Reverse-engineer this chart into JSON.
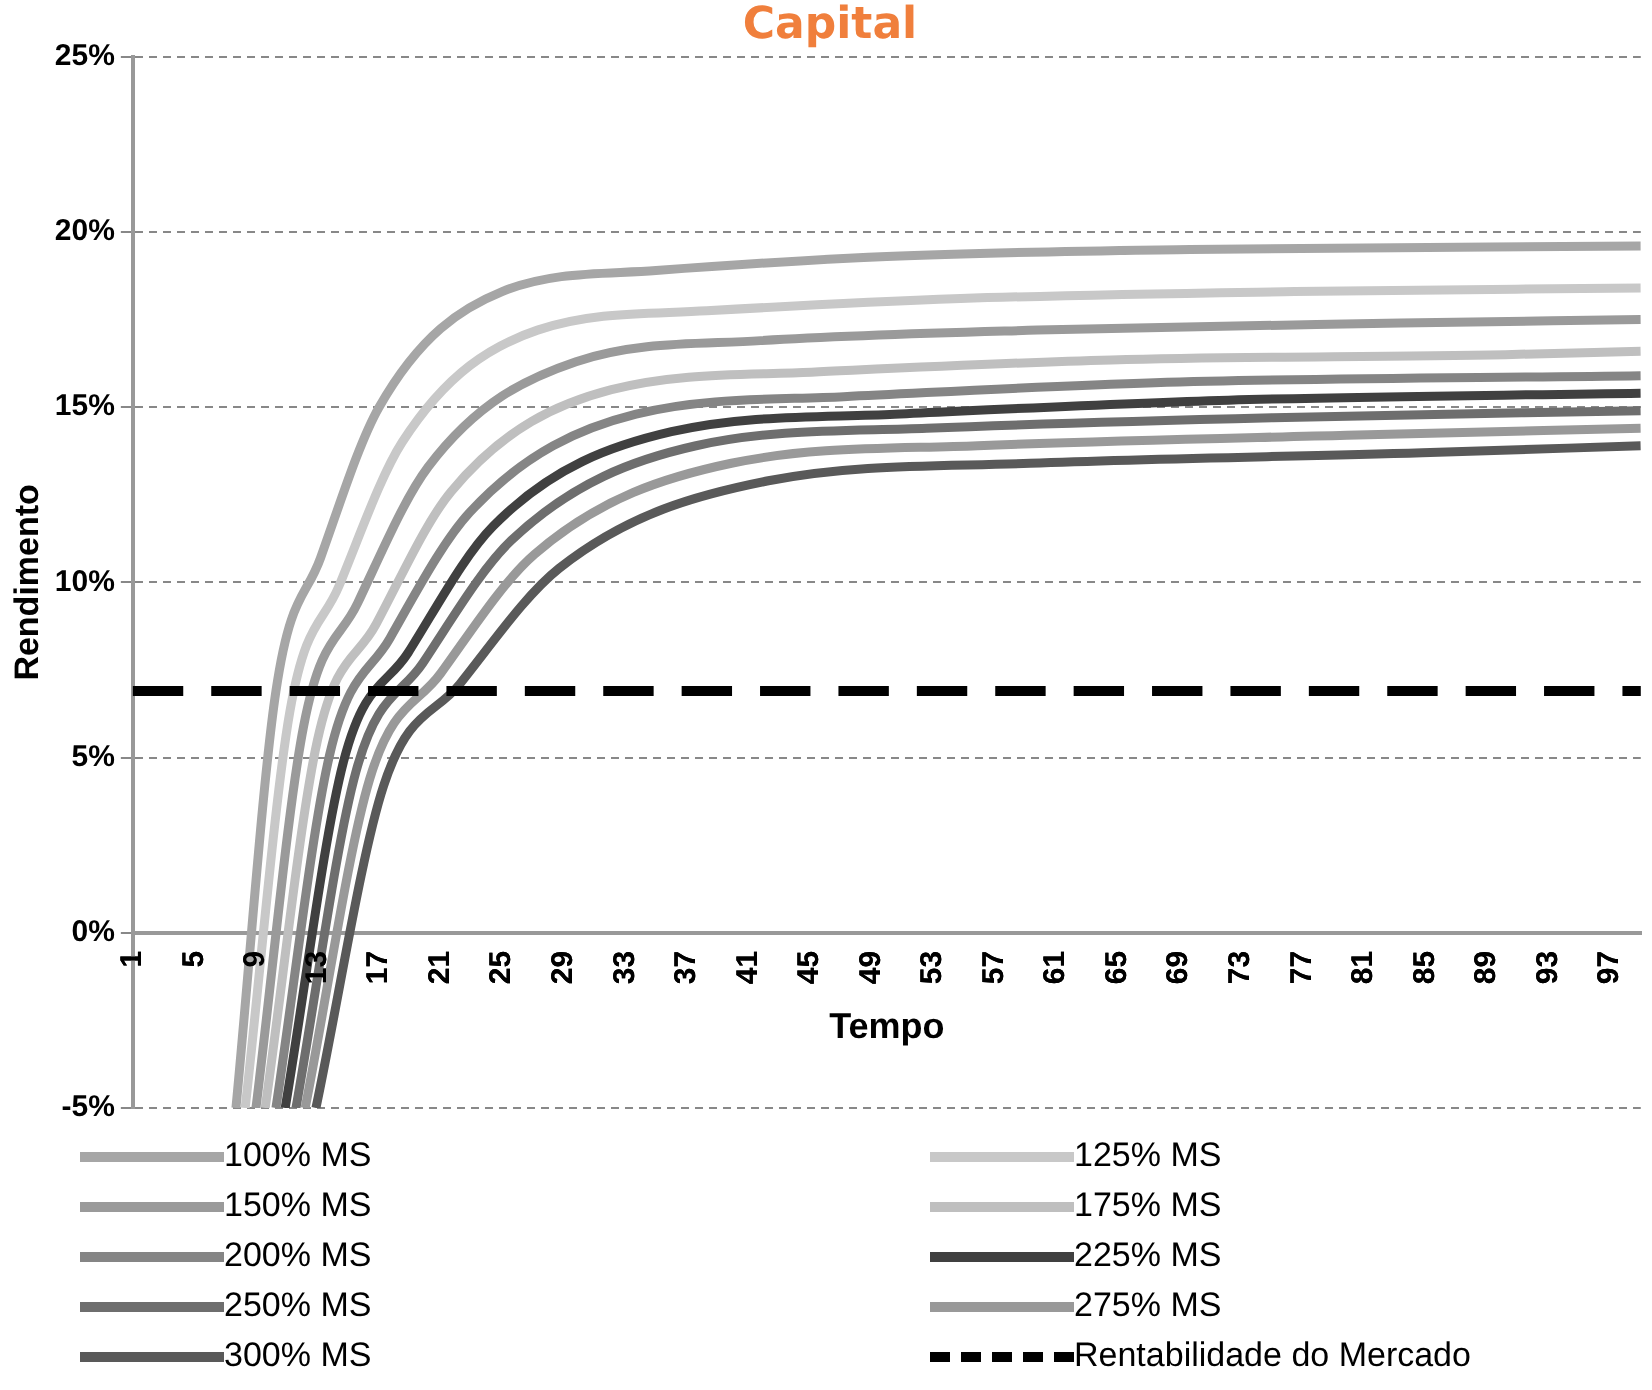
{
  "chart_data": {
    "type": "line",
    "title": "Capital",
    "xlabel": "Tempo",
    "ylabel": "Rendimento",
    "xlim": [
      1,
      99
    ],
    "xticks": [
      1,
      5,
      9,
      13,
      17,
      21,
      25,
      29,
      33,
      37,
      41,
      45,
      49,
      53,
      57,
      61,
      65,
      69,
      73,
      77,
      81,
      85,
      89,
      93,
      97
    ],
    "ylim": [
      -5,
      25
    ],
    "yticks": [
      {
        "value": -5,
        "label": "-5%"
      },
      {
        "value": 0,
        "label": "0%"
      },
      {
        "value": 5,
        "label": "5%"
      },
      {
        "value": 10,
        "label": "10%"
      },
      {
        "value": 15,
        "label": "15%"
      },
      {
        "value": 20,
        "label": "20%"
      },
      {
        "value": 25,
        "label": "25%"
      }
    ],
    "grid": "y",
    "legend": "bottom",
    "marker": "none",
    "line_style": "solid",
    "series": [
      {
        "name": "100% MS",
        "color": "#a6a6a6",
        "x": [
          7.7,
          10.3,
          13.2,
          17,
          25,
          35,
          50,
          69.7,
          99
        ],
        "values": [
          -5,
          6.9,
          10.7,
          15.0,
          18.3,
          18.9,
          19.3,
          19.5,
          19.6
        ]
      },
      {
        "name": "125% MS",
        "color": "#c8c8c8",
        "x": [
          8.3,
          11.2,
          14.4,
          18.5,
          27.3,
          38.3,
          54.8,
          76.5,
          99
        ],
        "values": [
          -5,
          6.3,
          9.9,
          14.0,
          17.2,
          17.75,
          18.1,
          18.3,
          18.4
        ]
      },
      {
        "name": "150% MS",
        "color": "#9a9a9a",
        "x": [
          9.0,
          12.1,
          15.6,
          20.2,
          29.8,
          41.8,
          59.8,
          83.4,
          99
        ],
        "values": [
          -5,
          5.9,
          9.4,
          13.3,
          16.3,
          16.9,
          17.2,
          17.4,
          17.5
        ]
      },
      {
        "name": "175% MS",
        "color": "#bfbfbf",
        "x": [
          9.6,
          13.0,
          16.8,
          21.7,
          32.1,
          45.1,
          64.6,
          90.2,
          99
        ],
        "values": [
          -5,
          5.5,
          8.8,
          12.6,
          15.5,
          16.0,
          16.35,
          16.5,
          16.6
        ]
      },
      {
        "name": "200% MS",
        "color": "#858585",
        "x": [
          10.3,
          13.8,
          17.7,
          22.9,
          33.7,
          47.2,
          67.4,
          99
        ],
        "values": [
          -5,
          5.1,
          8.4,
          12.0,
          14.8,
          15.3,
          15.7,
          15.9
        ]
      },
      {
        "name": "225% MS",
        "color": "#404040",
        "x": [
          10.9,
          14.7,
          18.9,
          24.4,
          36.0,
          50.5,
          72.2,
          99
        ],
        "values": [
          -5,
          4.9,
          8.0,
          11.6,
          14.3,
          14.8,
          15.2,
          15.4
        ]
      },
      {
        "name": "250% MS",
        "color": "#6e6e6e",
        "x": [
          11.6,
          15.5,
          19.85,
          25.6,
          37.6,
          52.6,
          75.1,
          99
        ],
        "values": [
          -5,
          4.6,
          7.7,
          11.2,
          13.9,
          14.4,
          14.7,
          14.9
        ]
      },
      {
        "name": "275% MS",
        "color": "#999999",
        "x": [
          12.2,
          16.4,
          21.0,
          27.1,
          39.9,
          55.9,
          79.9,
          99
        ],
        "values": [
          -5,
          4.4,
          7.4,
          10.8,
          13.4,
          13.9,
          14.2,
          14.4
        ]
      },
      {
        "name": "300% MS",
        "color": "#595959",
        "x": [
          12.9,
          17.3,
          22.25,
          28.7,
          42.3,
          59.3,
          84.8,
          99
        ],
        "values": [
          -5,
          4.2,
          7.1,
          10.4,
          12.9,
          13.4,
          13.7,
          13.9
        ]
      }
    ],
    "ref_lines": [
      {
        "axis": "y",
        "value": 6.9,
        "label": "Rentabilidade do Mercado",
        "color": "#000000",
        "line_style": "dashed"
      }
    ]
  }
}
